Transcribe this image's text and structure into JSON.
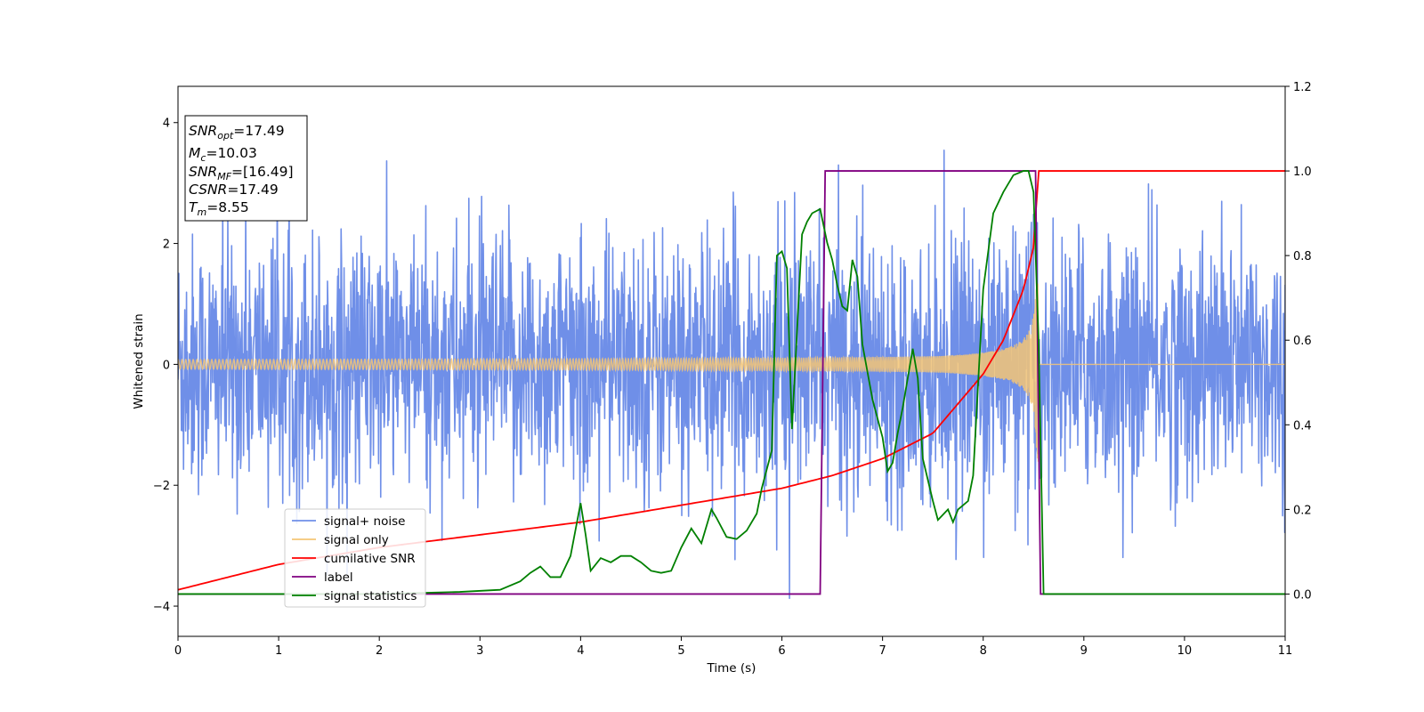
{
  "chart_data": {
    "type": "line",
    "xlabel": "Time (s)",
    "ylabel": "Whitened strain",
    "xlim": [
      0,
      11
    ],
    "ylim": [
      -4.5,
      4.6
    ],
    "y2lim": [
      -0.1,
      1.2
    ],
    "x_ticks": [
      0,
      1,
      2,
      3,
      4,
      5,
      6,
      7,
      8,
      9,
      10,
      11
    ],
    "y_ticks": [
      -4,
      -2,
      0,
      2,
      4
    ],
    "y2_ticks": [
      "0.0",
      "0.2",
      "0.4",
      "0.6",
      "0.8",
      "1.0",
      "1.2"
    ],
    "grid": false,
    "legend_position": "lower-left",
    "annotation": {
      "snr_opt": "17.49",
      "mc": "10.03",
      "snr_mf": "[16.49]",
      "csnr": "17.49",
      "tm": "8.55"
    },
    "series": [
      {
        "name": "signal+ noise",
        "axis": "left",
        "color": "#6f8fe8",
        "description": "whitened Gaussian noise with injected chirp, amplitude mostly within ±2.5",
        "noise_range": [
          -4.1,
          4.2
        ]
      },
      {
        "name": "signal only",
        "axis": "left",
        "color": "#f5c676",
        "description": "chirp signal growing in amplitude until merger",
        "start_amplitude": 0.08,
        "peak_amplitude": 1.6,
        "merger_time": 8.55,
        "after_merger_value": 0
      },
      {
        "name": "cumilative SNR",
        "axis": "right",
        "color": "#ff0000",
        "x": [
          0,
          1,
          2,
          3,
          4,
          5,
          6,
          6.5,
          7,
          7.5,
          8,
          8.2,
          8.4,
          8.5,
          8.55,
          11
        ],
        "y": [
          0.01,
          0.07,
          0.11,
          0.14,
          0.17,
          0.21,
          0.25,
          0.28,
          0.32,
          0.38,
          0.52,
          0.6,
          0.72,
          0.82,
          1.0,
          1.0
        ]
      },
      {
        "name": "label",
        "axis": "right",
        "color": "#800080",
        "x": [
          0,
          6.38,
          6.43,
          8.52,
          8.57,
          11
        ],
        "y": [
          0,
          0,
          1,
          1,
          0,
          0
        ]
      },
      {
        "name": "signal statistics",
        "axis": "right",
        "color": "#008000",
        "x": [
          0,
          1,
          2,
          2.8,
          3.2,
          3.4,
          3.5,
          3.6,
          3.7,
          3.8,
          3.9,
          4.0,
          4.05,
          4.1,
          4.2,
          4.3,
          4.4,
          4.5,
          4.6,
          4.7,
          4.8,
          4.9,
          5.0,
          5.1,
          5.2,
          5.3,
          5.35,
          5.45,
          5.55,
          5.65,
          5.75,
          5.8,
          5.9,
          5.95,
          6.0,
          6.05,
          6.1,
          6.15,
          6.2,
          6.25,
          6.3,
          6.38,
          6.45,
          6.5,
          6.55,
          6.6,
          6.65,
          6.7,
          6.75,
          6.8,
          6.9,
          7.0,
          7.05,
          7.1,
          7.15,
          7.2,
          7.25,
          7.3,
          7.35,
          7.4,
          7.5,
          7.55,
          7.65,
          7.7,
          7.75,
          7.85,
          7.9,
          8.0,
          8.1,
          8.2,
          8.3,
          8.4,
          8.45,
          8.5,
          8.55,
          8.6,
          11
        ],
        "y": [
          0,
          0,
          0,
          0.005,
          0.01,
          0.03,
          0.05,
          0.065,
          0.04,
          0.04,
          0.09,
          0.215,
          0.14,
          0.055,
          0.085,
          0.075,
          0.09,
          0.09,
          0.075,
          0.055,
          0.05,
          0.055,
          0.11,
          0.155,
          0.12,
          0.2,
          0.18,
          0.135,
          0.13,
          0.15,
          0.19,
          0.25,
          0.34,
          0.8,
          0.81,
          0.77,
          0.39,
          0.62,
          0.85,
          0.88,
          0.9,
          0.91,
          0.83,
          0.79,
          0.73,
          0.68,
          0.67,
          0.79,
          0.75,
          0.59,
          0.46,
          0.37,
          0.29,
          0.31,
          0.38,
          0.44,
          0.51,
          0.58,
          0.51,
          0.32,
          0.22,
          0.175,
          0.2,
          0.17,
          0.2,
          0.22,
          0.28,
          0.72,
          0.9,
          0.95,
          0.99,
          1.0,
          1.0,
          0.95,
          0.6,
          0.0,
          0.0
        ]
      }
    ]
  }
}
